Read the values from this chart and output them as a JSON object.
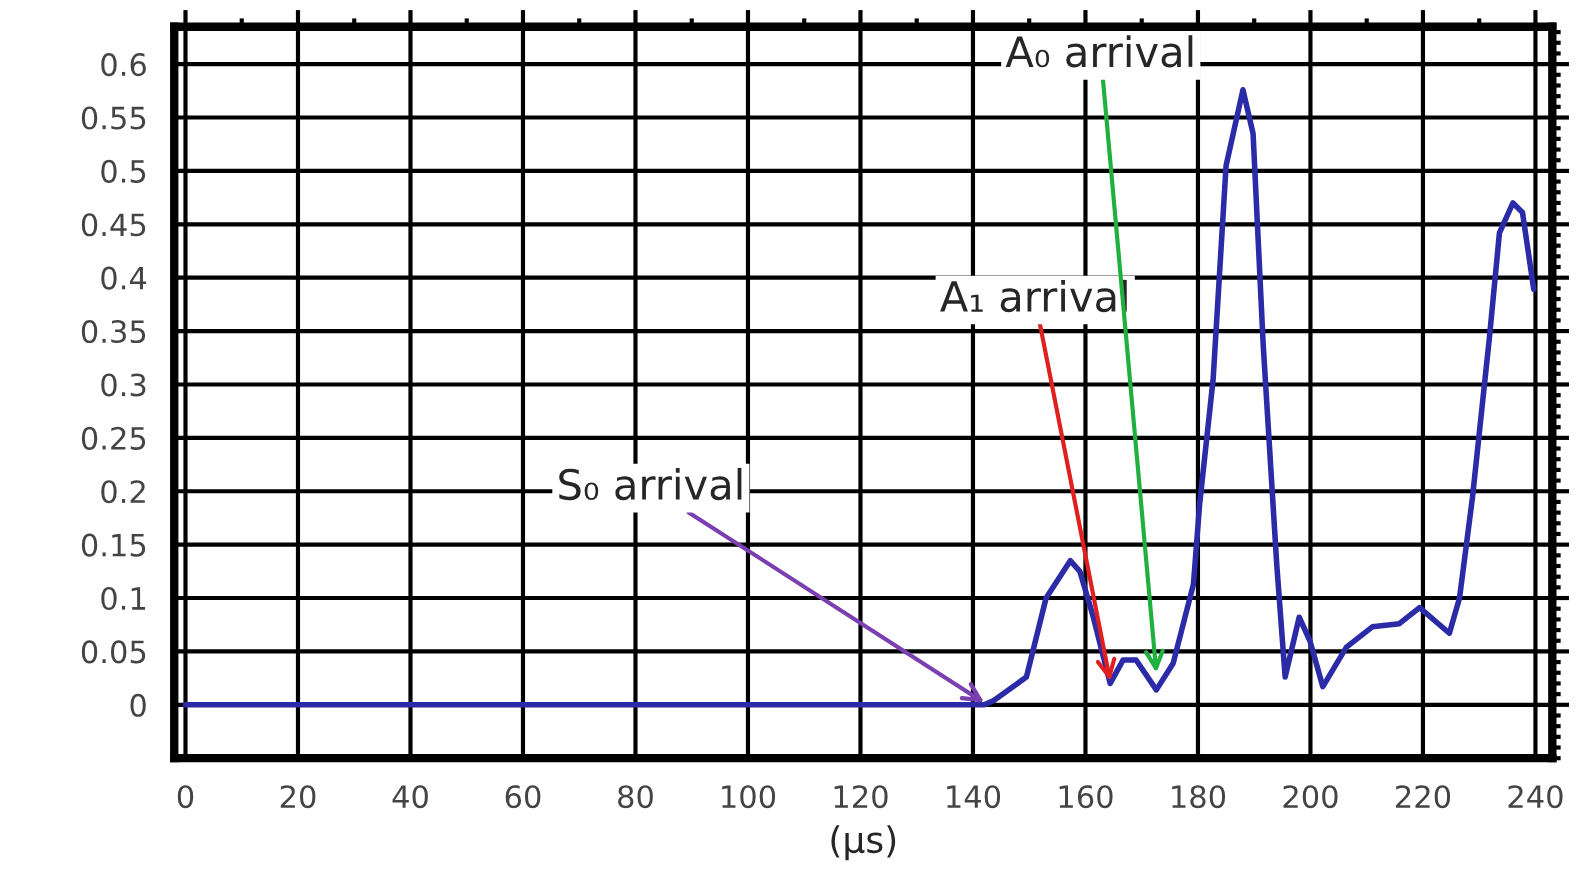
{
  "chart_data": {
    "type": "line",
    "xlabel": "(μs)",
    "x": [
      0,
      140,
      142,
      143.7,
      149.5,
      153,
      157.3,
      159,
      161.4,
      164.4,
      166.7,
      169,
      172.6,
      175.6,
      179.2,
      180.3,
      182.7,
      185,
      188,
      189.8,
      191.6,
      194,
      195.5,
      198,
      199.9,
      202.2,
      206.4,
      211,
      215.8,
      219.4,
      224.7,
      226.5,
      228.8,
      231.8,
      233.6,
      236,
      237.7,
      239.7
    ],
    "series": [
      {
        "color": "#2b2ba8",
        "values": [
          0,
          0,
          0,
          0.004,
          0.026,
          0.1,
          0.135,
          0.125,
          0.082,
          0.02,
          0.042,
          0.042,
          0.014,
          0.039,
          0.113,
          0.188,
          0.305,
          0.505,
          0.576,
          0.535,
          0.337,
          0.132,
          0.026,
          0.082,
          0.06,
          0.017,
          0.054,
          0.073,
          0.076,
          0.091,
          0.067,
          0.1,
          0.194,
          0.343,
          0.442,
          0.47,
          0.461,
          0.389
        ]
      }
    ],
    "xlim": [
      -2,
      243
    ],
    "ylim": [
      -0.05,
      0.635
    ],
    "xticks": [
      0,
      20,
      40,
      60,
      80,
      100,
      120,
      140,
      160,
      180,
      200,
      220,
      240
    ],
    "yticks": [
      0,
      0.05,
      0.1,
      0.15,
      0.2,
      0.25,
      0.3,
      0.35,
      0.4,
      0.45,
      0.5,
      0.55,
      0.6
    ],
    "grid": true,
    "marker": "none",
    "line_style": "solid",
    "annotations": [
      {
        "text": "S₀ arrival",
        "x": 142,
        "y": 0.002
      },
      {
        "text": "A₁ arrival",
        "x": 164.4,
        "y": 0.022
      },
      {
        "text": "A₀ arrival",
        "x": 172.6,
        "y": 0.03
      }
    ]
  }
}
